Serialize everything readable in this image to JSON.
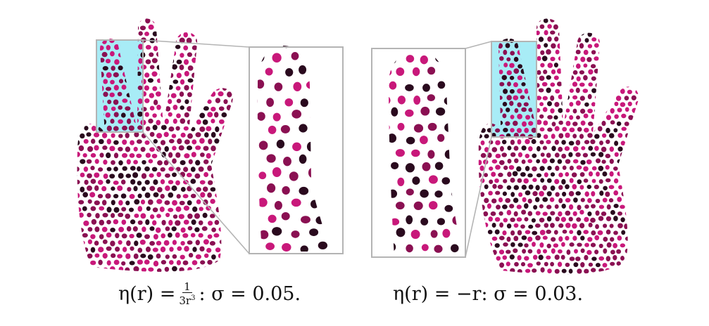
{
  "figure": {
    "panels": [
      {
        "id": "left",
        "caption": {
          "lhs": "η(r) = ",
          "frac_num": "1",
          "frac_den": "3r",
          "frac_den_exp": "3",
          "rhs": ": σ = 0.05."
        }
      },
      {
        "id": "right",
        "caption": {
          "text": "η(r) = −r: σ = 0.03."
        }
      }
    ],
    "colors": {
      "dot_dark": "#2a0a1e",
      "dot_mid": "#8a1052",
      "dot_bright": "#c8187a",
      "highlight_fill": "#a8ecf6",
      "frame_stroke": "#b4b4b4"
    }
  }
}
